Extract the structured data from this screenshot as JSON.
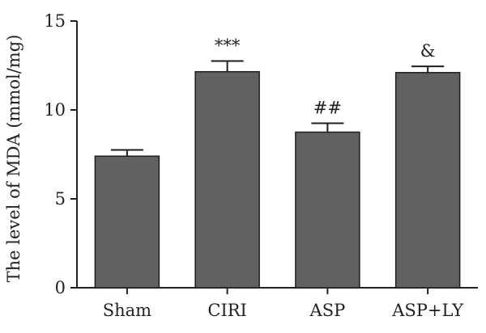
{
  "chart_data": {
    "type": "bar",
    "title": "",
    "xlabel": "",
    "ylabel": "The level of MDA (mmol/mg)",
    "categories": [
      "Sham",
      "CIRI",
      "ASP",
      "ASP+LY"
    ],
    "values": [
      7.4,
      12.15,
      8.75,
      12.1
    ],
    "errors": [
      0.35,
      0.6,
      0.5,
      0.35
    ],
    "annotations": [
      "",
      "***",
      "##",
      "&"
    ],
    "ylim": [
      0,
      15
    ],
    "yticks": [
      0,
      5,
      10,
      15
    ],
    "bar_color": "#5f6162",
    "grid": false,
    "legend": "none"
  }
}
